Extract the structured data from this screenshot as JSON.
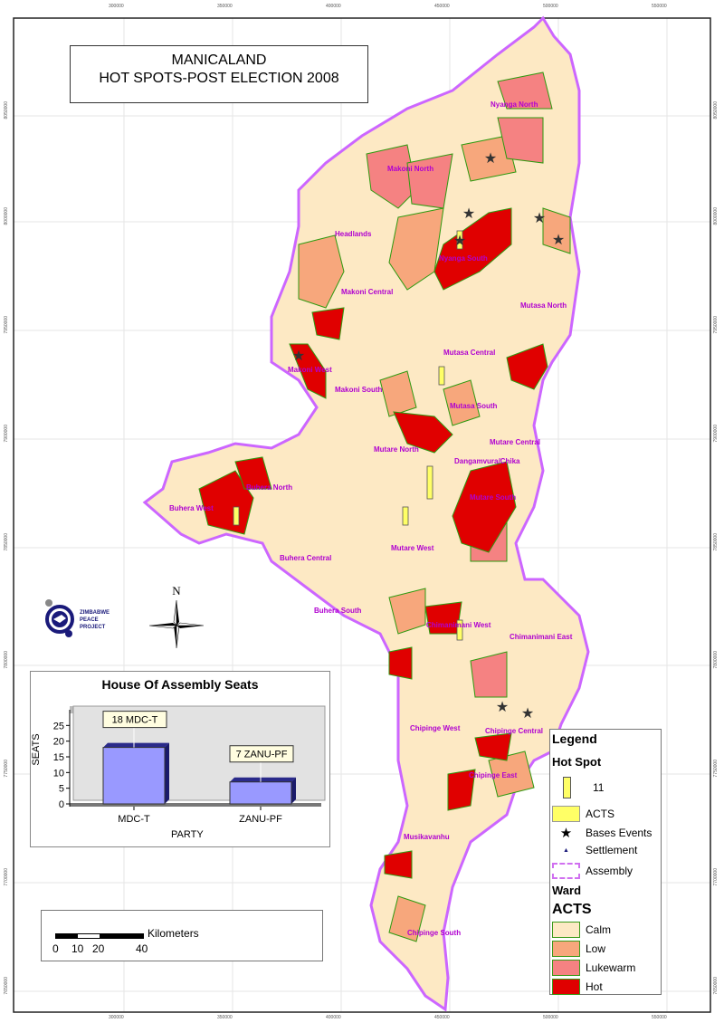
{
  "title": {
    "line1": "MANICALAND",
    "line2": "HOT SPOTS-POST ELECTION 2008"
  },
  "grid": {
    "eastings": [
      "300000",
      "350000",
      "400000",
      "450000",
      "500000",
      "550000"
    ],
    "northings": [
      "8050000",
      "8000000",
      "7950000",
      "7900000",
      "7850000",
      "7800000",
      "7750000",
      "7700000",
      "7650000"
    ]
  },
  "constituencies": [
    "Nyanga North",
    "Makoni North",
    "Headlands",
    "Nyanga South",
    "Makoni Central",
    "Mutasa North",
    "Makoni West",
    "Mutasa Central",
    "Makoni South",
    "Mutasa South",
    "Mutare North",
    "Mutare Central",
    "Dangamvura/Chika",
    "Buhera North",
    "Buhera West",
    "Mutare South",
    "Mutare West",
    "Buhera Central",
    "Buhera South",
    "Chimanimani West",
    "Chimanimani East",
    "Chipinge West",
    "Chipinge Central",
    "Chipinge East",
    "Musikavanhu",
    "Chipinge South"
  ],
  "logo": {
    "text": "ZIMBABWE PEACE PROJECT"
  },
  "north_arrow": {
    "label": "N"
  },
  "chart_data": {
    "type": "bar",
    "title": "House Of Assembly Seats",
    "xlabel": "PARTY",
    "ylabel": "SEATS",
    "categories": [
      "MDC-T",
      "ZANU-PF"
    ],
    "values": [
      18,
      7
    ],
    "data_labels": [
      "18 MDC-T",
      "7 ZANU-PF"
    ],
    "ylim": [
      0,
      25
    ],
    "yticks": [
      "0",
      "5",
      "10",
      "15",
      "20",
      "25"
    ],
    "bar_color": "#9999ff",
    "grid": false
  },
  "legend": {
    "title": "Legend",
    "hot_spot_heading": "Hot Spot",
    "hot_spot_value": "11",
    "acts_label": "ACTS",
    "bases_label": "Bases Events",
    "settlement_label": "Settlement",
    "assembly_label": "Assembly",
    "ward_heading": "Ward",
    "ward_acts_heading": "ACTS",
    "classes": [
      {
        "label": "Calm",
        "color": "#fde9c4"
      },
      {
        "label": "Low",
        "color": "#f7a77c"
      },
      {
        "label": "Lukewarm",
        "color": "#f58282"
      },
      {
        "label": "Hot",
        "color": "#e00000"
      }
    ]
  },
  "scale_bar": {
    "unit": "Kilometers",
    "ticks": [
      "0",
      "10",
      "20",
      "40"
    ]
  },
  "colors": {
    "assembly_border": "#cc66ff",
    "ward_border": "#2e9a10",
    "acts_yellow": "#ffff66"
  }
}
